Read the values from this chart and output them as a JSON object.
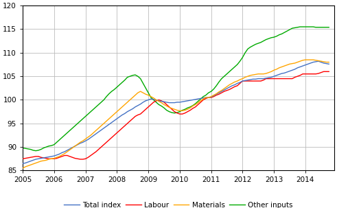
{
  "ylim": [
    85,
    120
  ],
  "xlim": [
    2005.0,
    2014.917
  ],
  "yticks": [
    85,
    90,
    95,
    100,
    105,
    110,
    115,
    120
  ],
  "xticks": [
    2005,
    2006,
    2007,
    2008,
    2009,
    2010,
    2011,
    2012,
    2013,
    2014
  ],
  "colors": {
    "total_index": "#4472C4",
    "labour": "#FF0000",
    "materials": "#FFA500",
    "other_inputs": "#00AA00"
  },
  "legend_labels": [
    "Total index",
    "Labour",
    "Materials",
    "Other inputs"
  ],
  "background_color": "#FFFFFF",
  "grid_color": "#BBBBBB",
  "linewidth": 1.0,
  "total_index": [
    86.5,
    86.6,
    86.8,
    87.0,
    87.2,
    87.4,
    87.5,
    87.6,
    87.7,
    87.8,
    87.9,
    88.0,
    88.1,
    88.3,
    88.5,
    88.8,
    89.0,
    89.3,
    89.6,
    89.9,
    90.2,
    90.5,
    90.8,
    91.0,
    91.3,
    91.6,
    92.0,
    92.4,
    92.8,
    93.2,
    93.6,
    94.0,
    94.4,
    94.8,
    95.2,
    95.6,
    96.0,
    96.4,
    96.8,
    97.1,
    97.5,
    97.8,
    98.1,
    98.5,
    98.8,
    99.1,
    99.5,
    99.8,
    100.0,
    100.2,
    100.1,
    100.0,
    99.8,
    99.7,
    99.6,
    99.5,
    99.4,
    99.4,
    99.4,
    99.5,
    99.5,
    99.6,
    99.7,
    99.8,
    99.9,
    100.0,
    100.1,
    100.2,
    100.3,
    100.4,
    100.5,
    100.5,
    100.6,
    100.9,
    101.2,
    101.5,
    101.8,
    102.1,
    102.4,
    102.7,
    103.0,
    103.2,
    103.5,
    103.7,
    104.0,
    104.1,
    104.2,
    104.3,
    104.4,
    104.4,
    104.5,
    104.5,
    104.5,
    104.6,
    104.7,
    104.8,
    105.0,
    105.2,
    105.4,
    105.6,
    105.7,
    105.9,
    106.1,
    106.3,
    106.5,
    106.8,
    107.0,
    107.2,
    107.4,
    107.6,
    107.8,
    108.0,
    108.1,
    108.2,
    108.0,
    107.8,
    107.7,
    107.6
  ],
  "labour": [
    87.5,
    87.6,
    87.7,
    87.8,
    87.9,
    88.0,
    88.0,
    87.8,
    87.7,
    87.6,
    87.5,
    87.5,
    87.5,
    87.6,
    87.8,
    88.0,
    88.2,
    88.2,
    88.0,
    87.8,
    87.6,
    87.5,
    87.4,
    87.4,
    87.5,
    87.8,
    88.2,
    88.6,
    89.0,
    89.5,
    90.0,
    90.5,
    91.0,
    91.5,
    92.0,
    92.5,
    93.0,
    93.5,
    94.0,
    94.5,
    95.0,
    95.5,
    96.0,
    96.5,
    96.8,
    97.0,
    97.5,
    98.0,
    98.5,
    99.0,
    99.5,
    99.8,
    100.0,
    99.8,
    99.5,
    99.0,
    98.5,
    98.0,
    97.5,
    97.2,
    97.0,
    97.0,
    97.2,
    97.5,
    97.8,
    98.2,
    98.5,
    99.0,
    99.5,
    100.0,
    100.3,
    100.5,
    100.5,
    100.7,
    101.0,
    101.2,
    101.5,
    101.8,
    102.0,
    102.2,
    102.5,
    102.8,
    103.0,
    103.5,
    104.0,
    104.0,
    104.0,
    104.0,
    104.0,
    104.0,
    104.0,
    104.0,
    104.2,
    104.5,
    104.5,
    104.5,
    104.5,
    104.5,
    104.5,
    104.5,
    104.5,
    104.5,
    104.5,
    104.5,
    104.8,
    105.0,
    105.2,
    105.5,
    105.5,
    105.5,
    105.5,
    105.5,
    105.5,
    105.6,
    105.8,
    106.0,
    106.0,
    106.0
  ],
  "materials": [
    85.5,
    85.8,
    86.0,
    86.2,
    86.4,
    86.6,
    86.8,
    87.0,
    87.1,
    87.2,
    87.4,
    87.5,
    87.6,
    87.8,
    88.0,
    88.3,
    88.6,
    89.0,
    89.4,
    89.8,
    90.2,
    90.6,
    91.0,
    91.3,
    91.7,
    92.1,
    92.5,
    93.0,
    93.5,
    94.0,
    94.5,
    95.0,
    95.5,
    96.0,
    96.5,
    97.0,
    97.5,
    98.0,
    98.5,
    99.0,
    99.5,
    100.0,
    100.5,
    101.0,
    101.5,
    101.8,
    101.5,
    101.2,
    101.0,
    100.7,
    100.4,
    100.0,
    99.7,
    99.4,
    99.0,
    98.7,
    98.4,
    98.2,
    98.0,
    97.8,
    97.7,
    97.7,
    97.8,
    98.0,
    98.3,
    98.7,
    99.0,
    99.4,
    99.8,
    100.2,
    100.5,
    100.5,
    100.7,
    101.0,
    101.3,
    101.7,
    102.0,
    102.4,
    102.8,
    103.2,
    103.5,
    103.8,
    104.0,
    104.3,
    104.5,
    104.8,
    105.0,
    105.2,
    105.3,
    105.4,
    105.5,
    105.5,
    105.5,
    105.6,
    105.8,
    106.0,
    106.3,
    106.5,
    106.8,
    107.0,
    107.2,
    107.4,
    107.6,
    107.7,
    107.8,
    108.0,
    108.2,
    108.4,
    108.5,
    108.5,
    108.5,
    108.5,
    108.4,
    108.3,
    108.2,
    108.1,
    108.0,
    108.0
  ],
  "other_inputs": [
    89.8,
    89.7,
    89.6,
    89.5,
    89.3,
    89.2,
    89.3,
    89.5,
    89.8,
    90.0,
    90.2,
    90.3,
    90.5,
    91.0,
    91.5,
    92.0,
    92.5,
    93.0,
    93.5,
    94.0,
    94.5,
    95.0,
    95.5,
    96.0,
    96.5,
    97.0,
    97.5,
    98.0,
    98.5,
    99.0,
    99.5,
    100.0,
    100.7,
    101.3,
    101.8,
    102.2,
    102.7,
    103.2,
    103.7,
    104.2,
    104.8,
    105.0,
    105.2,
    105.3,
    105.0,
    104.5,
    103.5,
    102.5,
    101.5,
    100.5,
    100.0,
    99.5,
    99.0,
    98.7,
    98.3,
    97.8,
    97.5,
    97.3,
    97.2,
    97.3,
    97.5,
    97.8,
    98.0,
    98.3,
    98.5,
    98.8,
    99.2,
    99.7,
    100.2,
    100.7,
    101.0,
    101.5,
    101.8,
    102.3,
    103.0,
    103.8,
    104.5,
    105.0,
    105.5,
    106.0,
    106.5,
    107.0,
    107.5,
    108.2,
    109.0,
    110.0,
    110.8,
    111.2,
    111.5,
    111.8,
    112.0,
    112.2,
    112.5,
    112.8,
    113.0,
    113.2,
    113.3,
    113.5,
    113.8,
    114.0,
    114.3,
    114.6,
    114.9,
    115.2,
    115.3,
    115.4,
    115.5,
    115.5,
    115.5,
    115.5,
    115.5,
    115.5,
    115.4,
    115.4,
    115.4,
    115.4,
    115.4,
    115.4
  ]
}
